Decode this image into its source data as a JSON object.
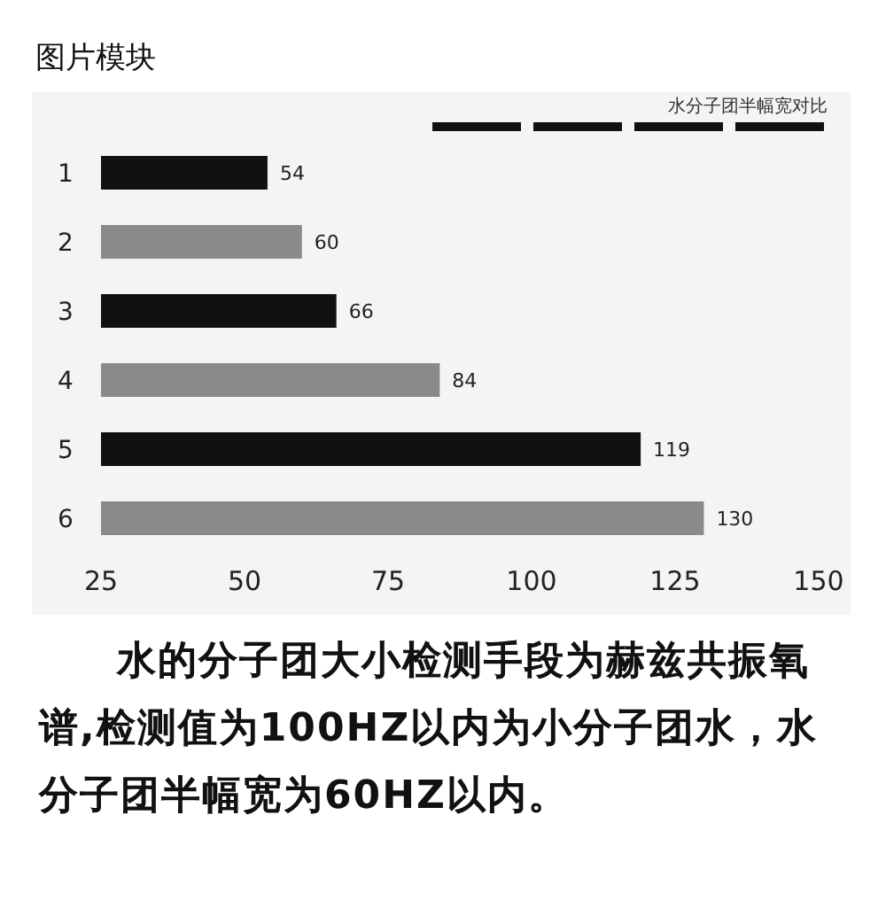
{
  "chart_data": {
    "type": "bar",
    "orientation": "horizontal",
    "title": "图片模块",
    "legend_title": "水分子团半幅宽对比",
    "categories": [
      "1",
      "2",
      "3",
      "4",
      "5",
      "6"
    ],
    "values": [
      54,
      60,
      66,
      84,
      119,
      130
    ],
    "colors": [
      "#111111",
      "#8a8a8a",
      "#111111",
      "#8a8a8a",
      "#111111",
      "#8a8a8a"
    ],
    "xlim": [
      25,
      150
    ],
    "xticks": [
      25,
      50,
      75,
      100,
      125,
      150
    ],
    "data_labels": true,
    "grid": false,
    "annotations": [
      "水的分子团大小检测手段为赫兹共振氧谱,检测值为100HZ以内为小分子团水，水分子团半幅宽为60HZ以内。"
    ]
  }
}
